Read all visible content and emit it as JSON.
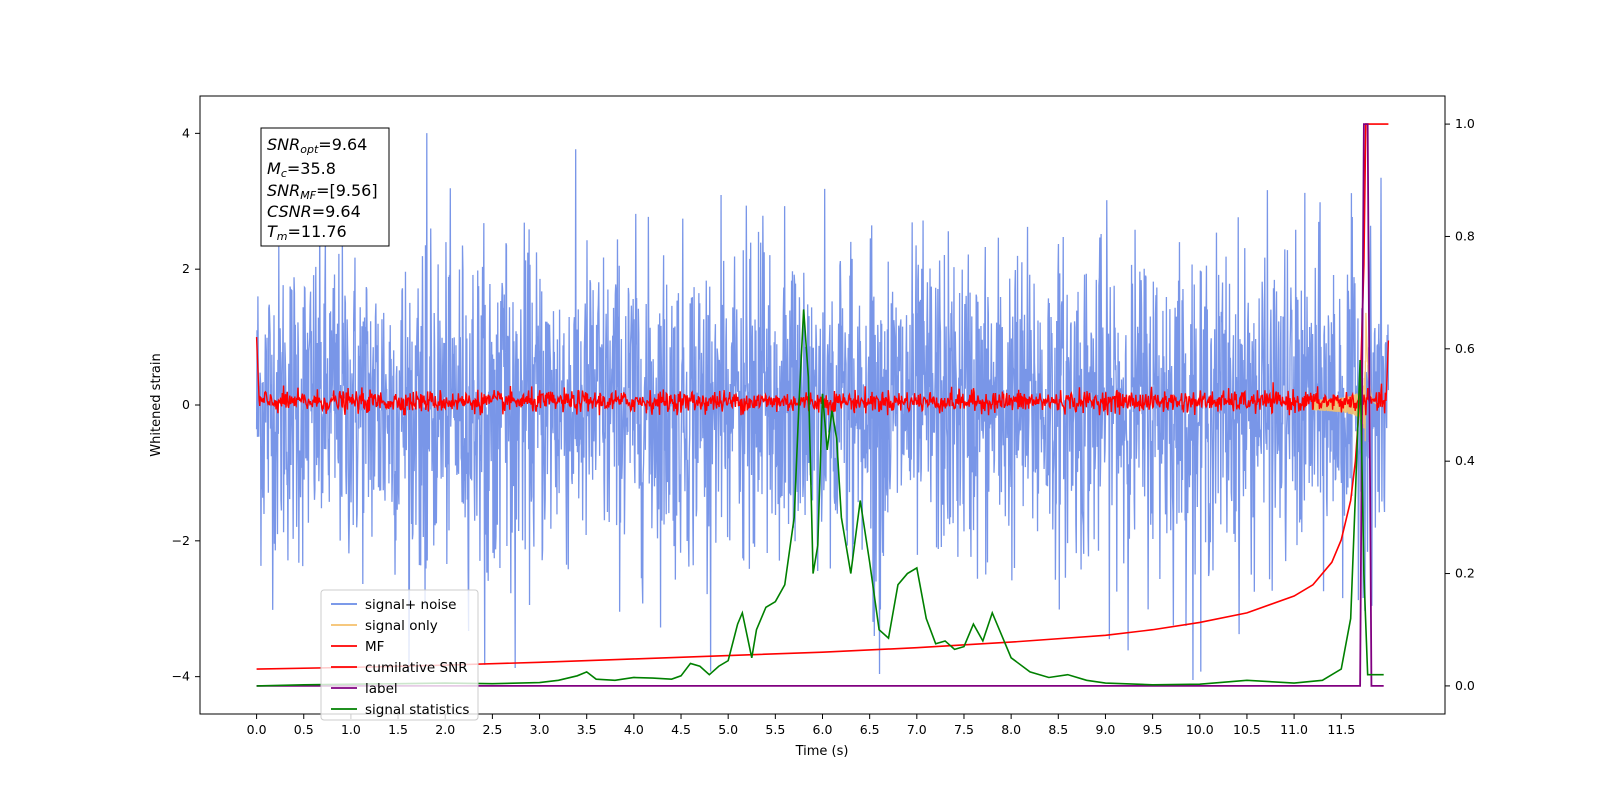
{
  "chart_data": {
    "type": "line",
    "xlabel": "Time (s)",
    "ylabel": "Whitened strain",
    "xlim": [
      -0.6,
      12.6
    ],
    "ylim": [
      -4.55,
      4.55
    ],
    "y2lim": [
      -0.05,
      1.05
    ],
    "x_ticks": [
      "0.0",
      "0.5",
      "1.0",
      "1.5",
      "2.0",
      "2.5",
      "3.0",
      "3.5",
      "4.0",
      "4.5",
      "5.0",
      "5.5",
      "6.0",
      "6.5",
      "7.0",
      "7.5",
      "8.0",
      "8.5",
      "9.0",
      "9.5",
      "10.0",
      "10.5",
      "11.0",
      "11.5"
    ],
    "y_ticks": [
      "−4",
      "−2",
      "0",
      "2",
      "4"
    ],
    "y2_ticks": [
      "0.0",
      "0.2",
      "0.4",
      "0.6",
      "0.8",
      "1.0"
    ],
    "grid": false,
    "legend_position": "lower-left",
    "colors": {
      "signal_noise": "#6a8be6",
      "signal_only": "#f5c16b",
      "mf": "#ff0000",
      "cumulative_snr": "#ff0000",
      "label": "#800080",
      "signal_statistics": "#008000"
    },
    "annotation": {
      "snr_opt": "=9.64",
      "mc": "=35.8",
      "snr_mf": "=[9.56]",
      "csnr": "=9.64",
      "tm": "=11.76"
    },
    "series": [
      {
        "name": "signal+ noise",
        "axis": "left",
        "description_range": [
          -3.8,
          4.0
        ],
        "x_range": [
          0.0,
          12.0
        ]
      },
      {
        "name": "signal only",
        "axis": "left",
        "x_range": [
          0.0,
          12.0
        ],
        "chirp_peak_time": 11.76
      },
      {
        "name": "MF",
        "axis": "left",
        "x_range": [
          0.0,
          12.0
        ],
        "level_range": [
          -0.15,
          0.3
        ]
      },
      {
        "name": "cumilative SNR",
        "axis": "right",
        "x": [
          0.0,
          1.0,
          2.0,
          3.0,
          4.0,
          5.0,
          6.0,
          7.0,
          8.0,
          9.0,
          9.5,
          10.0,
          10.5,
          11.0,
          11.2,
          11.4,
          11.5,
          11.6,
          11.65,
          11.7,
          11.74,
          11.76,
          12.0
        ],
        "values": [
          0.03,
          0.033,
          0.037,
          0.042,
          0.048,
          0.054,
          0.06,
          0.068,
          0.078,
          0.09,
          0.1,
          0.113,
          0.13,
          0.16,
          0.18,
          0.22,
          0.26,
          0.33,
          0.4,
          0.52,
          0.75,
          1.0,
          1.0
        ]
      },
      {
        "name": "label",
        "axis": "right",
        "x": [
          0.0,
          11.7,
          11.74,
          11.78,
          11.82,
          11.95
        ],
        "values": [
          0.0,
          0.0,
          1.0,
          1.0,
          0.0,
          0.0
        ]
      },
      {
        "name": "signal statistics",
        "axis": "right",
        "x": [
          0.0,
          0.5,
          1.0,
          1.5,
          2.0,
          2.5,
          3.0,
          3.2,
          3.4,
          3.5,
          3.6,
          3.8,
          4.0,
          4.2,
          4.4,
          4.5,
          4.6,
          4.7,
          4.8,
          4.9,
          5.0,
          5.1,
          5.15,
          5.2,
          5.25,
          5.3,
          5.4,
          5.5,
          5.6,
          5.7,
          5.75,
          5.8,
          5.85,
          5.9,
          5.95,
          6.0,
          6.05,
          6.1,
          6.15,
          6.2,
          6.3,
          6.4,
          6.5,
          6.6,
          6.7,
          6.8,
          6.9,
          7.0,
          7.1,
          7.2,
          7.3,
          7.4,
          7.5,
          7.6,
          7.7,
          7.8,
          7.9,
          8.0,
          8.2,
          8.4,
          8.6,
          8.8,
          9.0,
          9.5,
          10.0,
          10.5,
          11.0,
          11.3,
          11.5,
          11.6,
          11.65,
          11.7,
          11.74,
          11.78,
          11.82,
          11.86,
          11.95
        ],
        "values": [
          0.0,
          0.002,
          0.003,
          0.004,
          0.005,
          0.004,
          0.006,
          0.01,
          0.018,
          0.025,
          0.012,
          0.01,
          0.015,
          0.014,
          0.012,
          0.018,
          0.04,
          0.035,
          0.02,
          0.035,
          0.045,
          0.11,
          0.13,
          0.09,
          0.05,
          0.1,
          0.14,
          0.15,
          0.18,
          0.3,
          0.5,
          0.67,
          0.55,
          0.2,
          0.25,
          0.52,
          0.42,
          0.49,
          0.44,
          0.3,
          0.2,
          0.33,
          0.22,
          0.1,
          0.085,
          0.18,
          0.2,
          0.21,
          0.12,
          0.075,
          0.08,
          0.065,
          0.07,
          0.11,
          0.08,
          0.13,
          0.09,
          0.05,
          0.025,
          0.015,
          0.02,
          0.01,
          0.005,
          0.002,
          0.003,
          0.01,
          0.005,
          0.01,
          0.03,
          0.12,
          0.34,
          0.58,
          0.2,
          0.02,
          0.02,
          0.02,
          0.02
        ]
      }
    ],
    "legend": [
      "signal+ noise",
      "signal only",
      "MF",
      "cumilative SNR",
      "label",
      "signal statistics"
    ]
  }
}
